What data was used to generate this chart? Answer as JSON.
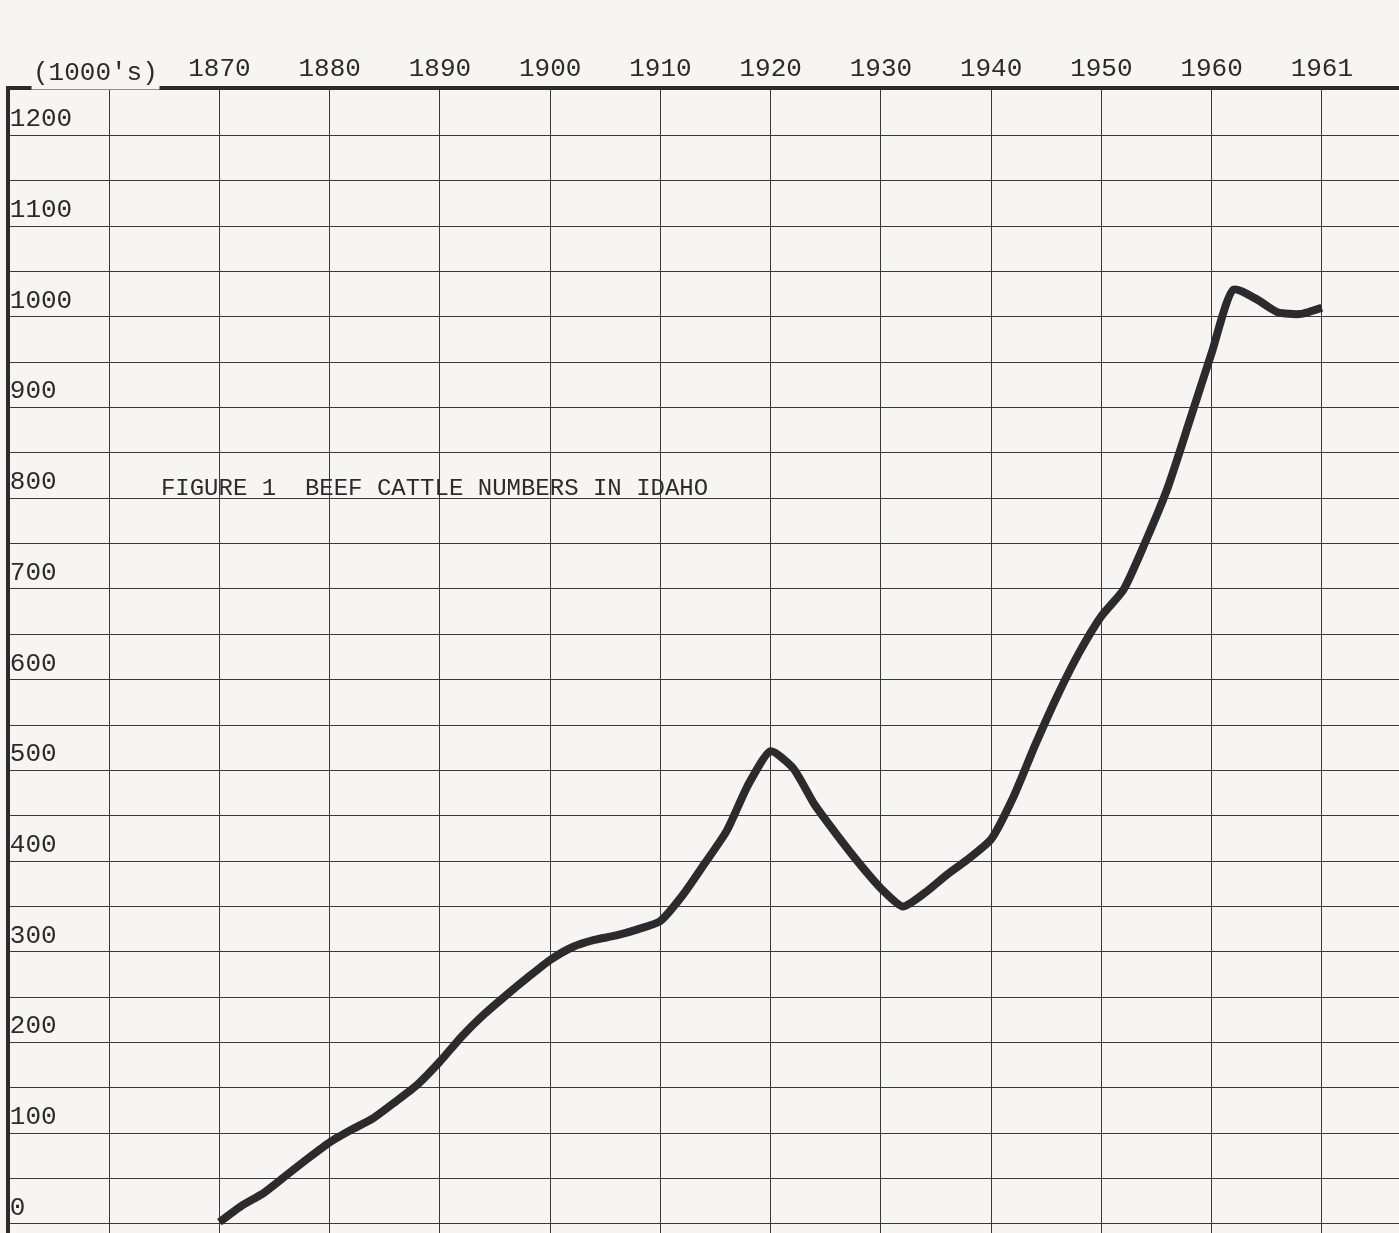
{
  "chart_data": {
    "type": "line",
    "title": "FIGURE 1  BEEF CATTLE NUMBERS IN IDAHO",
    "ylabel": "(1000's)",
    "categories": [
      null,
      null,
      null,
      null,
      null,
      null,
      null,
      null,
      null,
      "1870",
      null,
      null,
      null,
      null,
      "1880",
      null,
      null,
      null,
      null,
      "1890",
      null,
      null,
      null,
      null,
      "1900",
      null,
      null,
      null,
      null,
      "1910",
      null,
      null,
      null,
      null,
      "1920",
      null,
      null,
      null,
      null,
      "1930",
      null,
      null,
      null,
      null,
      "1940",
      null,
      null,
      null,
      null,
      "1950",
      null,
      null,
      null,
      null,
      "1960",
      null,
      null,
      null,
      null,
      "1961",
      null,
      null,
      null
    ],
    "series": [
      {
        "color": "#2b2b2d",
        "values": [
          null,
          null,
          null,
          null,
          null,
          null,
          null,
          null,
          null,
          2,
          20,
          34,
          53,
          72,
          90,
          104,
          117,
          135,
          154,
          179,
          207,
          231,
          252,
          272,
          291,
          305,
          313,
          318,
          325,
          334,
          362,
          397,
          433,
          485,
          521,
          503,
          462,
          429,
          398,
          370,
          350,
          365,
          385,
          403,
          424,
          470,
          528,
          582,
          630,
          670,
          699,
          752,
          811,
          885,
          960,
          1030,
          1020,
          1005,
          1003,
          1010,
          null,
          null,
          null
        ]
      }
    ],
    "ylim": [
      -10,
      1250
    ],
    "yticks": [
      0,
      {
        "value": 50,
        "label": null
      },
      100,
      {
        "value": 150,
        "label": null
      },
      200,
      {
        "value": 250,
        "label": null
      },
      300,
      {
        "value": 350,
        "label": null
      },
      400,
      {
        "value": 450,
        "label": null
      },
      500,
      {
        "value": 550,
        "label": null
      },
      600,
      {
        "value": 650,
        "label": null
      },
      700,
      {
        "value": 750,
        "label": null
      },
      800,
      {
        "value": 850,
        "label": null
      },
      900,
      {
        "value": 950,
        "label": null
      },
      1000,
      {
        "value": 1050,
        "label": null
      },
      1100,
      {
        "value": 1150,
        "label": null
      },
      1200
    ],
    "grid": true,
    "legend": false,
    "marker": "none",
    "line_style": "solid"
  }
}
